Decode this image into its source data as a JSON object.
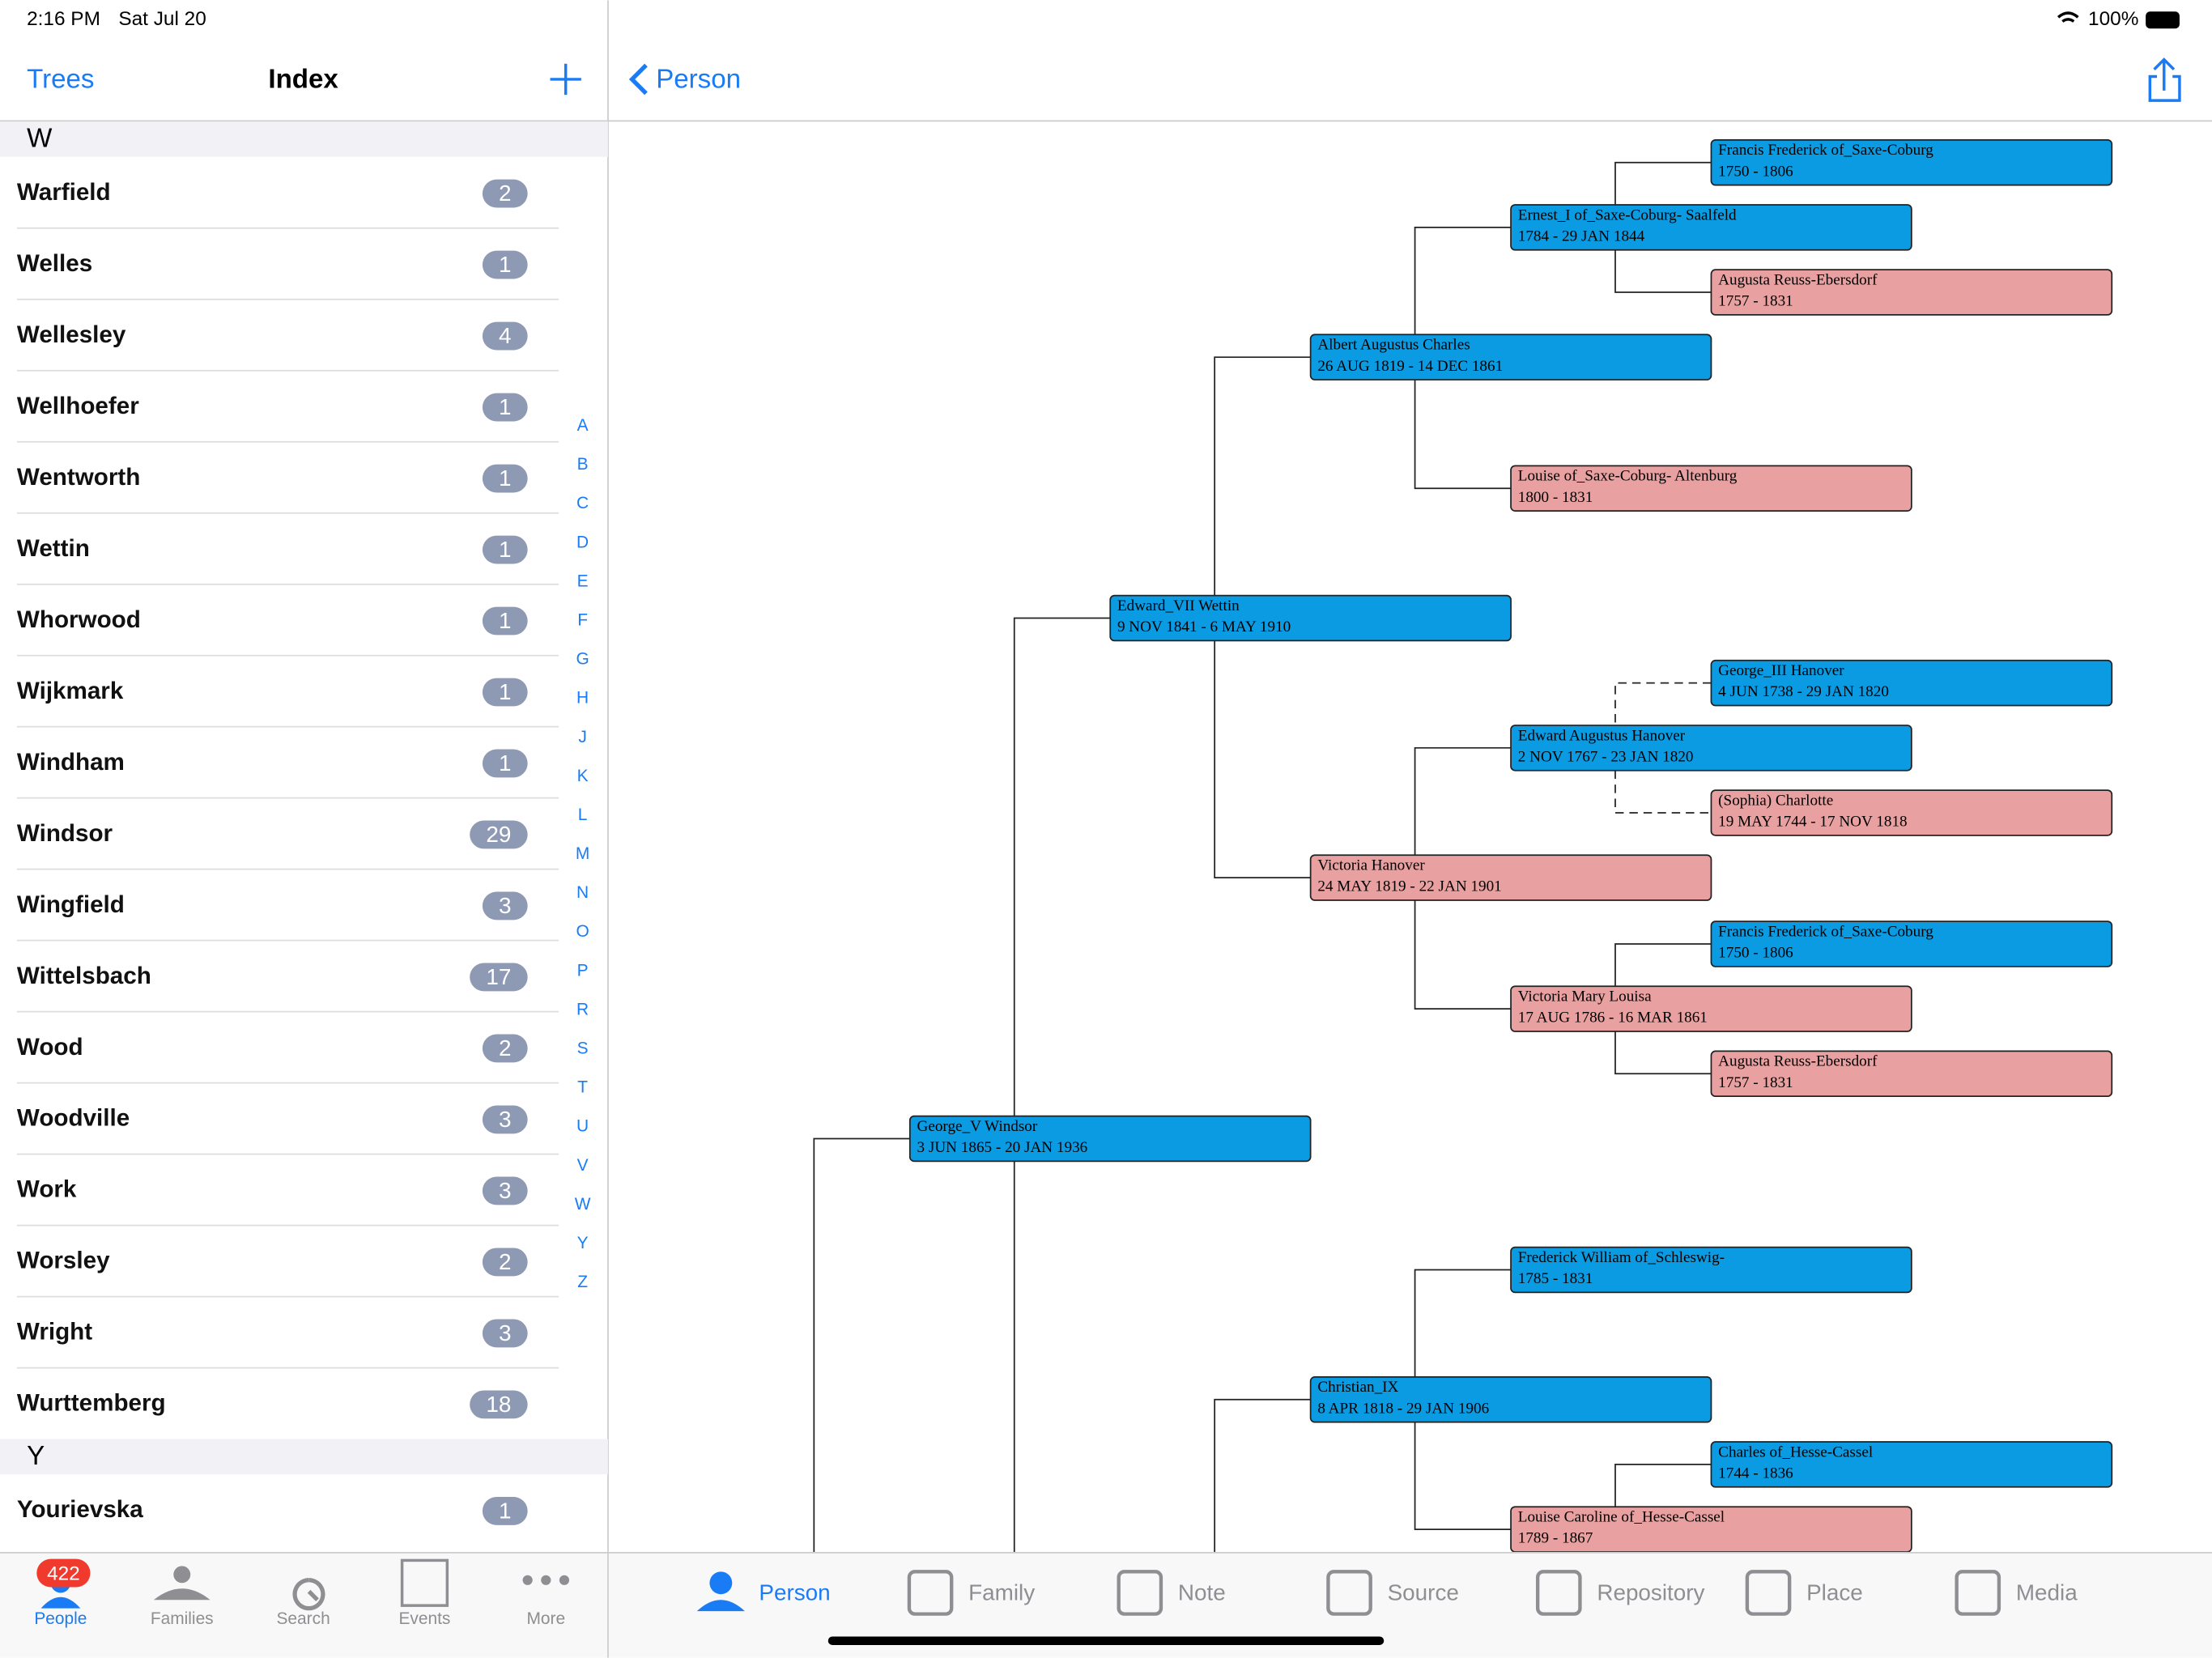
{
  "status_bar": {
    "time": "2:16 PM",
    "date": "Sat Jul 20",
    "battery": "100%"
  },
  "index_nav": {
    "back": "Trees",
    "title": "Index"
  },
  "sections": [
    {
      "letter": "W",
      "rows": [
        {
          "name": "Warfield",
          "count": 2
        },
        {
          "name": "Welles",
          "count": 1
        },
        {
          "name": "Wellesley",
          "count": 4
        },
        {
          "name": "Wellhoefer",
          "count": 1
        },
        {
          "name": "Wentworth",
          "count": 1
        },
        {
          "name": "Wettin",
          "count": 1
        },
        {
          "name": "Whorwood",
          "count": 1
        },
        {
          "name": "Wijkmark",
          "count": 1
        },
        {
          "name": "Windham",
          "count": 1
        },
        {
          "name": "Windsor",
          "count": 29
        },
        {
          "name": "Wingfield",
          "count": 3
        },
        {
          "name": "Wittelsbach",
          "count": 17
        },
        {
          "name": "Wood",
          "count": 2
        },
        {
          "name": "Woodville",
          "count": 3
        },
        {
          "name": "Work",
          "count": 3
        },
        {
          "name": "Worsley",
          "count": 2
        },
        {
          "name": "Wright",
          "count": 3
        },
        {
          "name": "Wurttemberg",
          "count": 18
        }
      ]
    },
    {
      "letter": "Y",
      "rows": [
        {
          "name": "Yourievska",
          "count": 1
        }
      ]
    }
  ],
  "alphabet": [
    "A",
    "B",
    "C",
    "D",
    "E",
    "F",
    "G",
    "H",
    "J",
    "K",
    "L",
    "M",
    "N",
    "O",
    "P",
    "R",
    "S",
    "T",
    "U",
    "V",
    "W",
    "Y",
    "Z"
  ],
  "detail_nav": {
    "back": "Person"
  },
  "tree": {
    "nodes": [
      {
        "name": "Francis Frederick of_Saxe-Coburg",
        "dates": "1750 - 1806",
        "color": "#0a9be3"
      },
      {
        "name": "Ernest_I of_Saxe-Coburg- Saalfeld",
        "dates": "1784 - 29 JAN 1844",
        "color": "#0a9be3"
      },
      {
        "name": "Augusta Reuss-Ebersdorf",
        "dates": "1757 - 1831",
        "color": "#e8a0a0"
      },
      {
        "name": "Albert Augustus Charles",
        "dates": "26 AUG 1819 - 14 DEC 1861",
        "color": "#0a9be3"
      },
      {
        "name": "Louise of_Saxe-Coburg- Altenburg",
        "dates": "1800 - 1831",
        "color": "#e8a0a0"
      },
      {
        "name": "Edward_VII  Wettin",
        "dates": "9 NOV 1841 - 6 MAY 1910",
        "color": "#0a9be3"
      },
      {
        "name": "George_III  Hanover",
        "dates": "4 JUN 1738 - 29 JAN 1820",
        "color": "#0a9be3"
      },
      {
        "name": "Edward Augustus Hanover",
        "dates": "2 NOV 1767 - 23 JAN 1820",
        "color": "#0a9be3"
      },
      {
        "name": "(Sophia) Charlotte",
        "dates": "19 MAY 1744 - 17 NOV 1818",
        "color": "#e8a0a0"
      },
      {
        "name": "Victoria  Hanover",
        "dates": "24 MAY 1819 - 22 JAN 1901",
        "color": "#e8a0a0"
      },
      {
        "name": "Francis Frederick of_Saxe-Coburg",
        "dates": "1750 - 1806",
        "color": "#0a9be3"
      },
      {
        "name": "Victoria Mary Louisa",
        "dates": "17 AUG 1786 - 16 MAR 1861",
        "color": "#e8a0a0"
      },
      {
        "name": "Augusta Reuss-Ebersdorf",
        "dates": "1757 - 1831",
        "color": "#e8a0a0"
      },
      {
        "name": "George_V  Windsor",
        "dates": "3 JUN 1865 - 20 JAN 1936",
        "color": "#0a9be3"
      },
      {
        "name": "Frederick William of_Schleswig-",
        "dates": "1785 - 1831",
        "color": "#0a9be3"
      },
      {
        "name": "Christian_IX",
        "dates": "8 APR 1818 - 29 JAN 1906",
        "color": "#0a9be3"
      },
      {
        "name": "Charles of_Hesse-Cassel",
        "dates": "1744 - 1836",
        "color": "#0a9be3"
      },
      {
        "name": "Louise Caroline of_Hesse-Cassel",
        "dates": "1789 - 1867",
        "color": "#e8a0a0"
      }
    ]
  },
  "tab_bar": {
    "items": [
      {
        "label": "People",
        "badge": 422
      },
      {
        "label": "Families"
      },
      {
        "label": "Search"
      },
      {
        "label": "Events"
      },
      {
        "label": "More"
      }
    ]
  },
  "detail_tab_bar": {
    "items": [
      "Person",
      "Family",
      "Note",
      "Source",
      "Repository",
      "Place",
      "Media"
    ]
  }
}
